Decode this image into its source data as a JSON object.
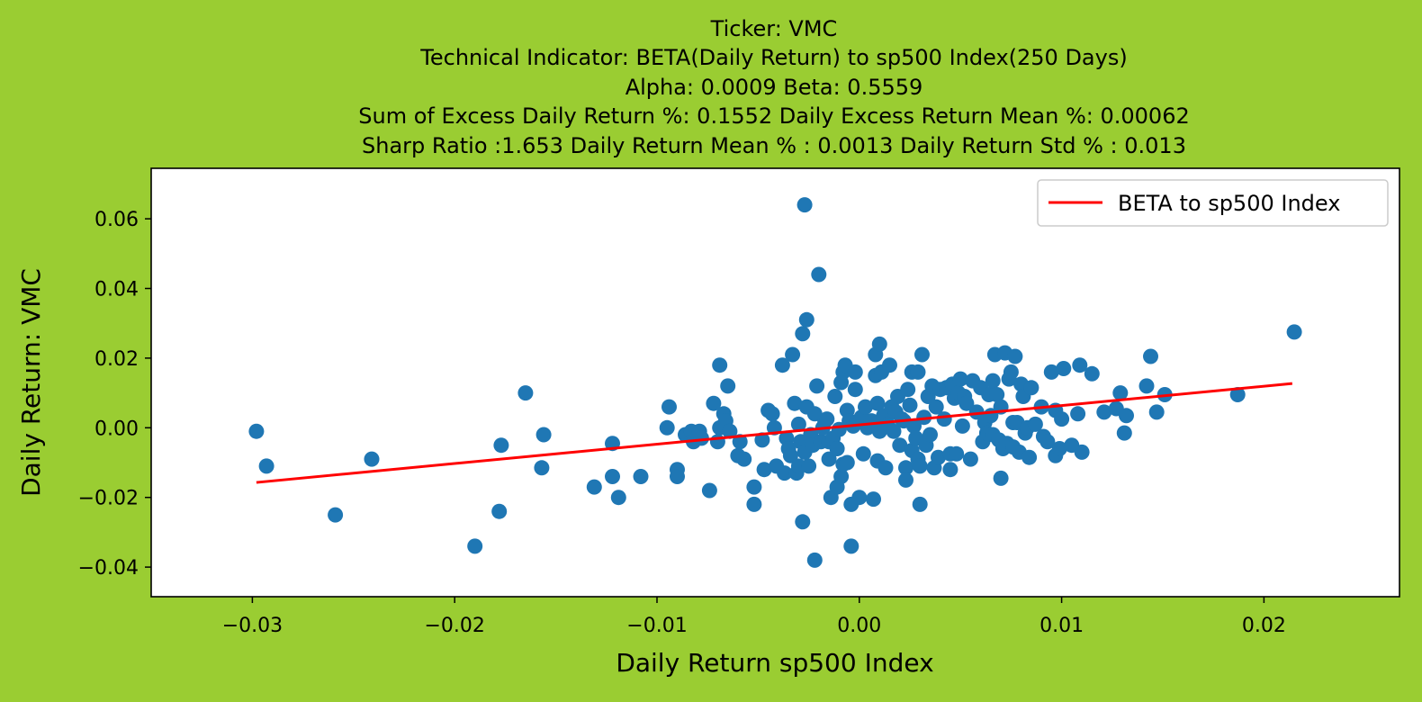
{
  "colors": {
    "background": "#9acd32",
    "plot_area": "#ffffff",
    "points": "#1f77b4",
    "beta_line": "#ff0000"
  },
  "chart_data": {
    "type": "scatter",
    "title_lines": [
      "Ticker: VMC",
      "Technical Indicator: BETA(Daily Return) to sp500 Index(250 Days)",
      "Alpha: 0.0009   Beta: 0.5559",
      "Sum of Excess Daily Return %: 0.1552   Daily Excess Return Mean %: 0.00062",
      "Sharp Ratio :1.653    Daily Return Mean % : 0.0013    Daily Return Std % : 0.013"
    ],
    "xlabel": "Daily Return sp500 Index",
    "ylabel": "Daily Return: VMC",
    "xlim": [
      -0.035,
      0.0267
    ],
    "ylim": [
      -0.0485,
      0.0745
    ],
    "xticks": [
      -0.03,
      -0.02,
      -0.01,
      0.0,
      0.01,
      0.02
    ],
    "xtick_labels": [
      "−0.03",
      "−0.02",
      "−0.01",
      "0.00",
      "0.01",
      "0.02"
    ],
    "yticks": [
      -0.04,
      -0.02,
      0.0,
      0.02,
      0.04,
      0.06
    ],
    "ytick_labels": [
      "−0.04",
      "−0.02",
      "0.00",
      "0.02",
      "0.04",
      "0.06"
    ],
    "legend_position": "top-right",
    "grid": false,
    "series": [
      {
        "name": "BETA to sp500 Index",
        "kind": "line",
        "points": [
          [
            -0.0298,
            -0.0157
          ],
          [
            0.0214,
            0.0127
          ]
        ]
      },
      {
        "kind": "scatter",
        "points": [
          [
            -0.0298,
            -0.001
          ],
          [
            -0.0293,
            -0.011
          ],
          [
            -0.0259,
            -0.025
          ],
          [
            -0.0241,
            -0.009
          ],
          [
            -0.019,
            -0.034
          ],
          [
            -0.0178,
            -0.024
          ],
          [
            -0.0177,
            -0.005
          ],
          [
            -0.0165,
            0.01
          ],
          [
            -0.0156,
            -0.002
          ],
          [
            -0.0157,
            -0.0115
          ],
          [
            -0.0131,
            -0.017
          ],
          [
            -0.0122,
            -0.0045
          ],
          [
            -0.0122,
            -0.014
          ],
          [
            -0.0119,
            -0.02
          ],
          [
            -0.0108,
            -0.014
          ],
          [
            -0.0094,
            0.006
          ],
          [
            -0.0095,
            0.0
          ],
          [
            -0.009,
            -0.012
          ],
          [
            -0.009,
            -0.014
          ],
          [
            -0.0086,
            -0.002
          ],
          [
            -0.0083,
            -0.001
          ],
          [
            -0.0082,
            -0.004
          ],
          [
            -0.0079,
            -0.001
          ],
          [
            -0.0078,
            -0.003
          ],
          [
            -0.0074,
            -0.018
          ],
          [
            -0.0072,
            0.007
          ],
          [
            -0.007,
            -0.004
          ],
          [
            -0.0069,
            0.018
          ],
          [
            -0.0069,
            0.0
          ],
          [
            -0.0067,
            0.004
          ],
          [
            -0.0066,
            0.002
          ],
          [
            -0.0065,
            0.012
          ],
          [
            -0.0064,
            -0.001
          ],
          [
            -0.006,
            -0.008
          ],
          [
            -0.0059,
            -0.004
          ],
          [
            -0.0057,
            -0.009
          ],
          [
            -0.0052,
            -0.017
          ],
          [
            -0.0052,
            -0.022
          ],
          [
            -0.0048,
            -0.0035
          ],
          [
            -0.0047,
            -0.012
          ],
          [
            -0.0045,
            0.005
          ],
          [
            -0.0043,
            0.004
          ],
          [
            -0.0042,
            0.0
          ],
          [
            -0.0041,
            -0.011
          ],
          [
            -0.0038,
            0.018
          ],
          [
            -0.0037,
            -0.013
          ],
          [
            -0.0036,
            -0.003
          ],
          [
            -0.0035,
            -0.006
          ],
          [
            -0.0034,
            -0.008
          ],
          [
            -0.0033,
            0.021
          ],
          [
            -0.0032,
            0.007
          ],
          [
            -0.0031,
            -0.013
          ],
          [
            -0.003,
            -0.011
          ],
          [
            -0.003,
            0.001
          ],
          [
            -0.0029,
            -0.004
          ],
          [
            -0.0028,
            -0.027
          ],
          [
            -0.0028,
            0.027
          ],
          [
            -0.0027,
            -0.007
          ],
          [
            -0.0027,
            0.064
          ],
          [
            -0.0026,
            0.031
          ],
          [
            -0.0026,
            0.006
          ],
          [
            -0.0025,
            -0.011
          ],
          [
            -0.0024,
            -0.002
          ],
          [
            -0.0023,
            -0.005
          ],
          [
            -0.0022,
            -0.038
          ],
          [
            -0.0022,
            0.004
          ],
          [
            -0.0021,
            0.012
          ],
          [
            -0.002,
            0.044
          ],
          [
            -0.0019,
            -0.004
          ],
          [
            -0.0018,
            0.0
          ],
          [
            -0.0017,
            0.002
          ],
          [
            -0.0016,
            0.0025
          ],
          [
            -0.0015,
            -0.009
          ],
          [
            -0.0015,
            -0.004
          ],
          [
            -0.0014,
            -0.02
          ],
          [
            -0.0013,
            -0.003
          ],
          [
            -0.0012,
            0.009
          ],
          [
            -0.0011,
            -0.006
          ],
          [
            -0.0011,
            -0.017
          ],
          [
            -0.001,
            -0.0005
          ],
          [
            -0.0009,
            0.013
          ],
          [
            -0.0009,
            -0.014
          ],
          [
            -0.0008,
            -0.0105
          ],
          [
            -0.0008,
            0.016
          ],
          [
            -0.0007,
            0.018
          ],
          [
            -0.0006,
            0.005
          ],
          [
            -0.0006,
            -0.01
          ],
          [
            -0.0005,
            0.002
          ],
          [
            -0.0004,
            -0.022
          ],
          [
            -0.0004,
            -0.034
          ],
          [
            -0.0003,
            0.0005
          ],
          [
            -0.0002,
            0.016
          ],
          [
            -0.0002,
            0.011
          ],
          [
            0.0,
            -0.02
          ],
          [
            0.0001,
            0.003
          ],
          [
            0.0002,
            -0.0075
          ],
          [
            0.0003,
            0.006
          ],
          [
            0.0004,
            0.0
          ],
          [
            0.0006,
            0.002
          ],
          [
            0.0007,
            -0.0205
          ],
          [
            0.0008,
            0.015
          ],
          [
            0.0008,
            0.021
          ],
          [
            0.0009,
            -0.0095
          ],
          [
            0.0009,
            0.007
          ],
          [
            0.001,
            0.024
          ],
          [
            0.001,
            -0.001
          ],
          [
            0.0011,
            0.016
          ],
          [
            0.0012,
            0.0035
          ],
          [
            0.0013,
            -0.0115
          ],
          [
            0.0014,
            0.001
          ],
          [
            0.0015,
            0.018
          ],
          [
            0.0016,
            0.006
          ],
          [
            0.0017,
            -0.001
          ],
          [
            0.0018,
            0.0045
          ],
          [
            0.0019,
            0.009
          ],
          [
            0.002,
            -0.005
          ],
          [
            0.0021,
            0.0025
          ],
          [
            0.0022,
            0.002
          ],
          [
            0.0023,
            -0.0115
          ],
          [
            0.0023,
            -0.015
          ],
          [
            0.0024,
            0.011
          ],
          [
            0.0025,
            0.0065
          ],
          [
            0.0026,
            -0.0065
          ],
          [
            0.0026,
            0.016
          ],
          [
            0.0027,
            0.0005
          ],
          [
            0.0028,
            -0.003
          ],
          [
            0.0029,
            -0.009
          ],
          [
            0.0029,
            0.016
          ],
          [
            0.003,
            -0.022
          ],
          [
            0.003,
            -0.011
          ],
          [
            0.0031,
            0.021
          ],
          [
            0.0032,
            0.003
          ],
          [
            0.0033,
            -0.005
          ],
          [
            0.0034,
            0.009
          ],
          [
            0.0035,
            -0.002
          ],
          [
            0.0036,
            0.012
          ],
          [
            0.0037,
            -0.0115
          ],
          [
            0.0038,
            0.006
          ],
          [
            0.0039,
            -0.0085
          ],
          [
            0.004,
            0.011
          ],
          [
            0.0042,
            0.0025
          ],
          [
            0.0043,
            0.0115
          ],
          [
            0.0045,
            -0.0075
          ],
          [
            0.0045,
            -0.012
          ],
          [
            0.0046,
            0.0125
          ],
          [
            0.0047,
            0.0085
          ],
          [
            0.0048,
            -0.0075
          ],
          [
            0.0049,
            0.01
          ],
          [
            0.005,
            0.014
          ],
          [
            0.0051,
            0.0005
          ],
          [
            0.0052,
            0.009
          ],
          [
            0.0053,
            0.007
          ],
          [
            0.0055,
            -0.009
          ],
          [
            0.0056,
            0.0135
          ],
          [
            0.0058,
            0.0045
          ],
          [
            0.006,
            0.0115
          ],
          [
            0.0061,
            -0.004
          ],
          [
            0.0062,
            0.0015
          ],
          [
            0.0063,
            -0.0015
          ],
          [
            0.0064,
            0.0095
          ],
          [
            0.0065,
            0.0035
          ],
          [
            0.0066,
            0.0135
          ],
          [
            0.0066,
            -0.002
          ],
          [
            0.0067,
            0.021
          ],
          [
            0.0068,
            0.0095
          ],
          [
            0.0069,
            -0.0035
          ],
          [
            0.007,
            -0.0145
          ],
          [
            0.007,
            0.006
          ],
          [
            0.0071,
            -0.006
          ],
          [
            0.0072,
            0.0215
          ],
          [
            0.0073,
            -0.0045
          ],
          [
            0.0074,
            0.014
          ],
          [
            0.0075,
            0.016
          ],
          [
            0.0076,
            0.0015
          ],
          [
            0.0076,
            -0.0055
          ],
          [
            0.0077,
            0.0205
          ],
          [
            0.0078,
            0.0015
          ],
          [
            0.0079,
            -0.007
          ],
          [
            0.008,
            0.0125
          ],
          [
            0.0081,
            0.009
          ],
          [
            0.0082,
            -0.0015
          ],
          [
            0.0083,
            0.0
          ],
          [
            0.0084,
            -0.0085
          ],
          [
            0.0085,
            0.0115
          ],
          [
            0.0087,
            0.001
          ],
          [
            0.009,
            0.006
          ],
          [
            0.0091,
            -0.0025
          ],
          [
            0.0093,
            -0.004
          ],
          [
            0.0095,
            0.016
          ],
          [
            0.0097,
            -0.008
          ],
          [
            0.0097,
            0.005
          ],
          [
            0.0099,
            -0.006
          ],
          [
            0.01,
            0.0025
          ],
          [
            0.0101,
            0.017
          ],
          [
            0.0105,
            -0.005
          ],
          [
            0.0108,
            0.004
          ],
          [
            0.0109,
            0.018
          ],
          [
            0.011,
            -0.007
          ],
          [
            0.0115,
            0.0155
          ],
          [
            0.0121,
            0.0045
          ],
          [
            0.0127,
            0.0055
          ],
          [
            0.0129,
            0.01
          ],
          [
            0.0131,
            -0.0015
          ],
          [
            0.0132,
            0.0035
          ],
          [
            0.0142,
            0.012
          ],
          [
            0.0144,
            0.0205
          ],
          [
            0.0147,
            0.0045
          ],
          [
            0.0151,
            0.0095
          ],
          [
            0.0187,
            0.0095
          ],
          [
            0.0215,
            0.0275
          ]
        ]
      }
    ]
  }
}
